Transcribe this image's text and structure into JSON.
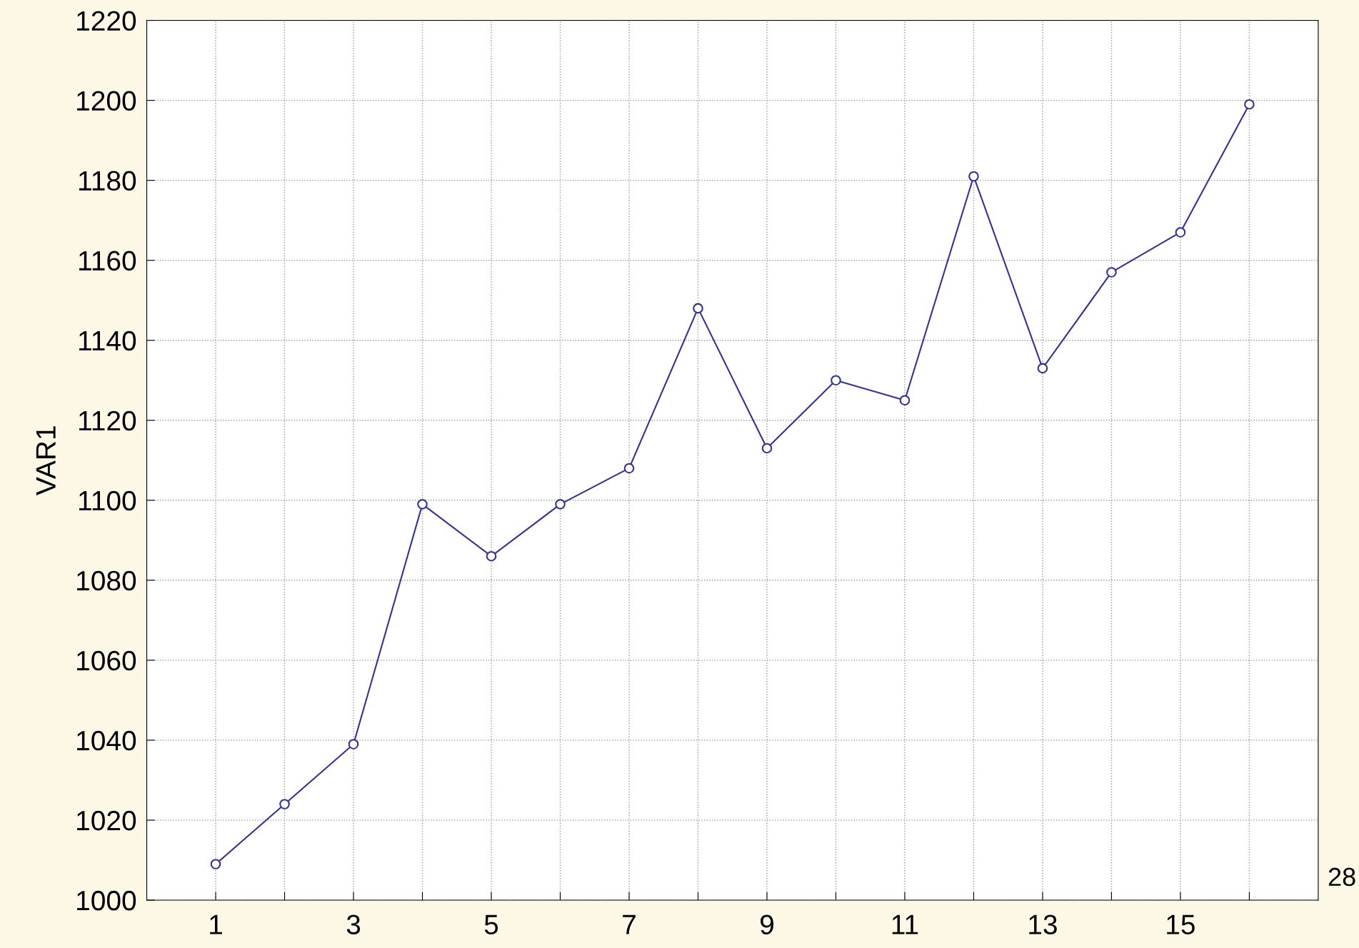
{
  "chart_data": {
    "type": "line",
    "ylabel": "VAR1",
    "x": [
      1,
      2,
      3,
      4,
      5,
      6,
      7,
      8,
      9,
      10,
      11,
      12,
      13,
      14,
      15,
      16
    ],
    "series": [
      {
        "color": "#2f2fb0",
        "values": [
          1009,
          1024,
          1039,
          1099,
          1086,
          1099,
          1108,
          1148,
          1113,
          1130,
          1125,
          1181,
          1133,
          1157,
          1167,
          1199
        ]
      }
    ],
    "xlim": [
      0,
      17
    ],
    "xticks": [
      1,
      {
        "value": 2,
        "label": null
      },
      3,
      {
        "value": 4,
        "label": null
      },
      5,
      {
        "value": 6,
        "label": null
      },
      7,
      {
        "value": 8,
        "label": null
      },
      9,
      {
        "value": 10,
        "label": null
      },
      11,
      {
        "value": 12,
        "label": null
      },
      13,
      {
        "value": 14,
        "label": null
      },
      15,
      {
        "value": 16,
        "label": null
      }
    ],
    "ylim": [
      1000,
      1220
    ],
    "yticks": [
      1000,
      1020,
      1040,
      1060,
      1080,
      1100,
      1120,
      1140,
      1160,
      1180,
      1200,
      1220
    ],
    "grid": true,
    "marker": "circle",
    "line_style": "solid",
    "annotations": [
      "28"
    ]
  }
}
